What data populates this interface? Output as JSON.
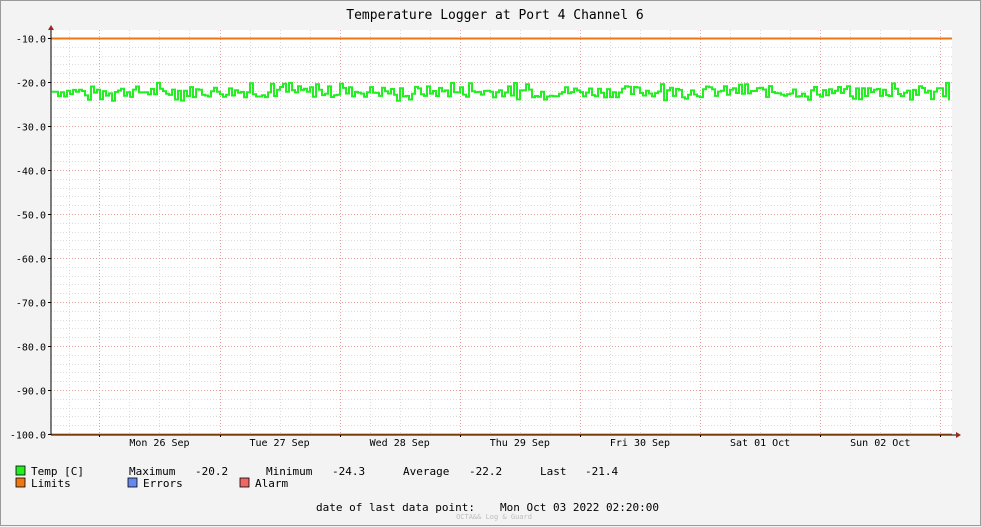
{
  "chart_data": {
    "type": "line",
    "title": "Temperature Logger at Port 4 Channel 6",
    "x_labels": [
      "Mon 26 Sep",
      "Tue 27 Sep",
      "Wed 28 Sep",
      "Thu 29 Sep",
      "Fri 30 Sep",
      "Sat 01 Oct",
      "Sun 02 Oct"
    ],
    "x_range": [
      "2022-09-25T14:20",
      "2022-10-03T02:20"
    ],
    "y_ticks": [
      "-10.0",
      "-20.0",
      "-30.0",
      "-40.0",
      "-50.0",
      "-60.0",
      "-70.0",
      "-80.0",
      "-90.0",
      "-100.0"
    ],
    "ylim": [
      -100,
      -10
    ],
    "grid": true,
    "series": [
      {
        "name": "Temp [C]",
        "color": "#22ee22",
        "pattern": "noisy",
        "center": -22.2,
        "min": -24.3,
        "max": -20.2,
        "last": -21.4
      },
      {
        "name": "Limits",
        "color": "#ee7711",
        "values": [
          -10.0,
          -100.0
        ]
      }
    ],
    "legend": [
      {
        "label": "Temp [C]",
        "color": "#22ee22"
      },
      {
        "label": "Limits",
        "color": "#ee7711"
      },
      {
        "label": "Errors",
        "color": "#6688ee"
      },
      {
        "label": "Alarm",
        "color": "#ee6666"
      }
    ],
    "stats": {
      "maximum_label": "Maximum",
      "maximum": "-20.2",
      "minimum_label": "Minimum",
      "minimum": "-24.3",
      "average_label": "Average",
      "average": "-22.2",
      "last_label": "Last",
      "last": "-21.4"
    },
    "footer": {
      "label": "date of last data point:",
      "value": "Mon Oct 03 2022 02:20:00"
    },
    "credit": "OCTA&& Log & Guard"
  }
}
